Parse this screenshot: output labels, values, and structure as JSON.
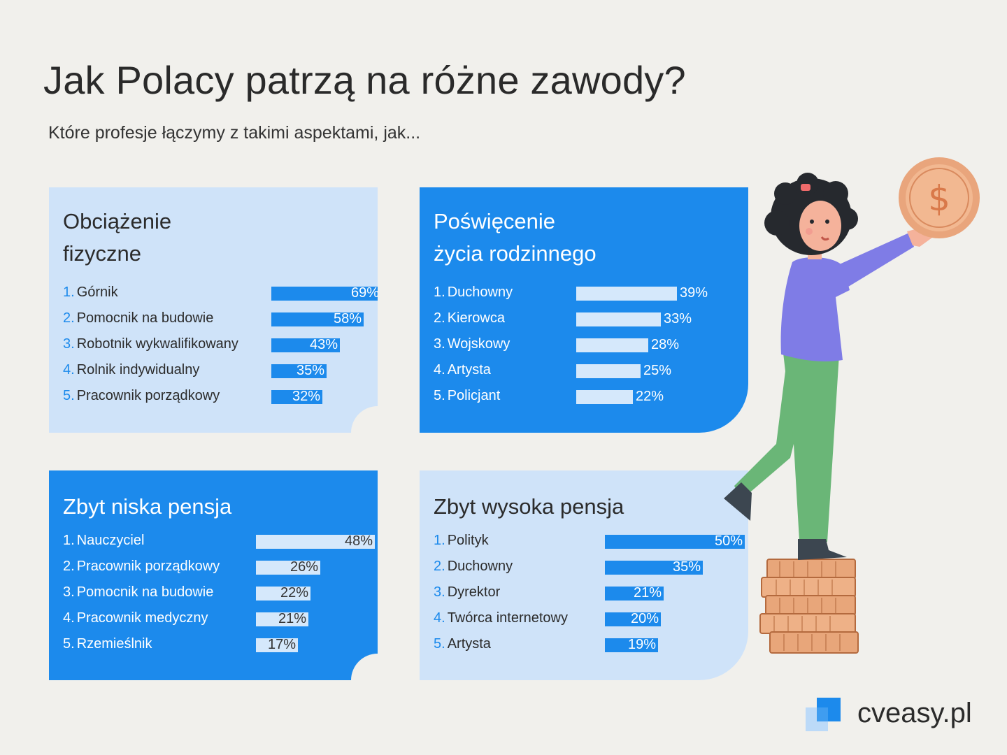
{
  "title": "Jak Polacy patrzą na różne zawody?",
  "subtitle": "Które profesje łączymy z takimi aspektami, jak...",
  "colors": {
    "background": "#f1f0ec",
    "light_panel": "#cfe3f9",
    "accent_blue": "#1c8aec",
    "light_bar": "#d5e8fb"
  },
  "chart_data": [
    {
      "type": "bar",
      "orientation": "horizontal",
      "title": [
        "Obciążenie",
        "fizyczne"
      ],
      "style": "light",
      "unit": "%",
      "categories": [
        "1. Górnik",
        "2. Pomocnik na budowie",
        "3. Robotnik wykwalifikowany",
        "4. Rolnik indywidualny",
        "5. Pracownik porządkowy"
      ],
      "values": [
        69,
        58,
        43,
        35,
        32
      ],
      "labels": [
        "69%",
        "58%",
        "43%",
        "35%",
        "32%"
      ]
    },
    {
      "type": "bar",
      "orientation": "horizontal",
      "title": [
        "Poświęcenie",
        "życia rodzinnego"
      ],
      "style": "dark",
      "unit": "%",
      "categories": [
        "1. Duchowny",
        "2. Kierowca",
        "3. Wojskowy",
        "4. Artysta",
        "5. Policjant"
      ],
      "values": [
        39,
        33,
        28,
        25,
        22
      ],
      "labels": [
        "39%",
        "33%",
        "28%",
        "25%",
        "22%"
      ]
    },
    {
      "type": "bar",
      "orientation": "horizontal",
      "title": [
        "Zbyt niska pensja"
      ],
      "style": "dark",
      "unit": "%",
      "categories": [
        "1. Nauczyciel",
        "2. Pracownik porządkowy",
        "3. Pomocnik na budowie",
        "4. Pracownik medyczny",
        "5. Rzemieślnik"
      ],
      "values": [
        48,
        26,
        22,
        21,
        17
      ],
      "labels": [
        "48%",
        "26%",
        "22%",
        "21%",
        "17%"
      ]
    },
    {
      "type": "bar",
      "orientation": "horizontal",
      "title": [
        "Zbyt wysoka pensja"
      ],
      "style": "light",
      "unit": "%",
      "categories": [
        "1. Polityk",
        "2. Duchowny",
        "3. Dyrektor",
        "4. Twórca internetowy",
        "5. Artysta"
      ],
      "values": [
        50,
        35,
        21,
        20,
        19
      ],
      "labels": [
        "50%",
        "35%",
        "21%",
        "20%",
        "19%"
      ]
    }
  ],
  "logo": {
    "text": "cveasy.pl",
    "icon": "cveasy-logo-icon"
  },
  "illustration": {
    "icon": "woman-holding-coin-illustration"
  }
}
